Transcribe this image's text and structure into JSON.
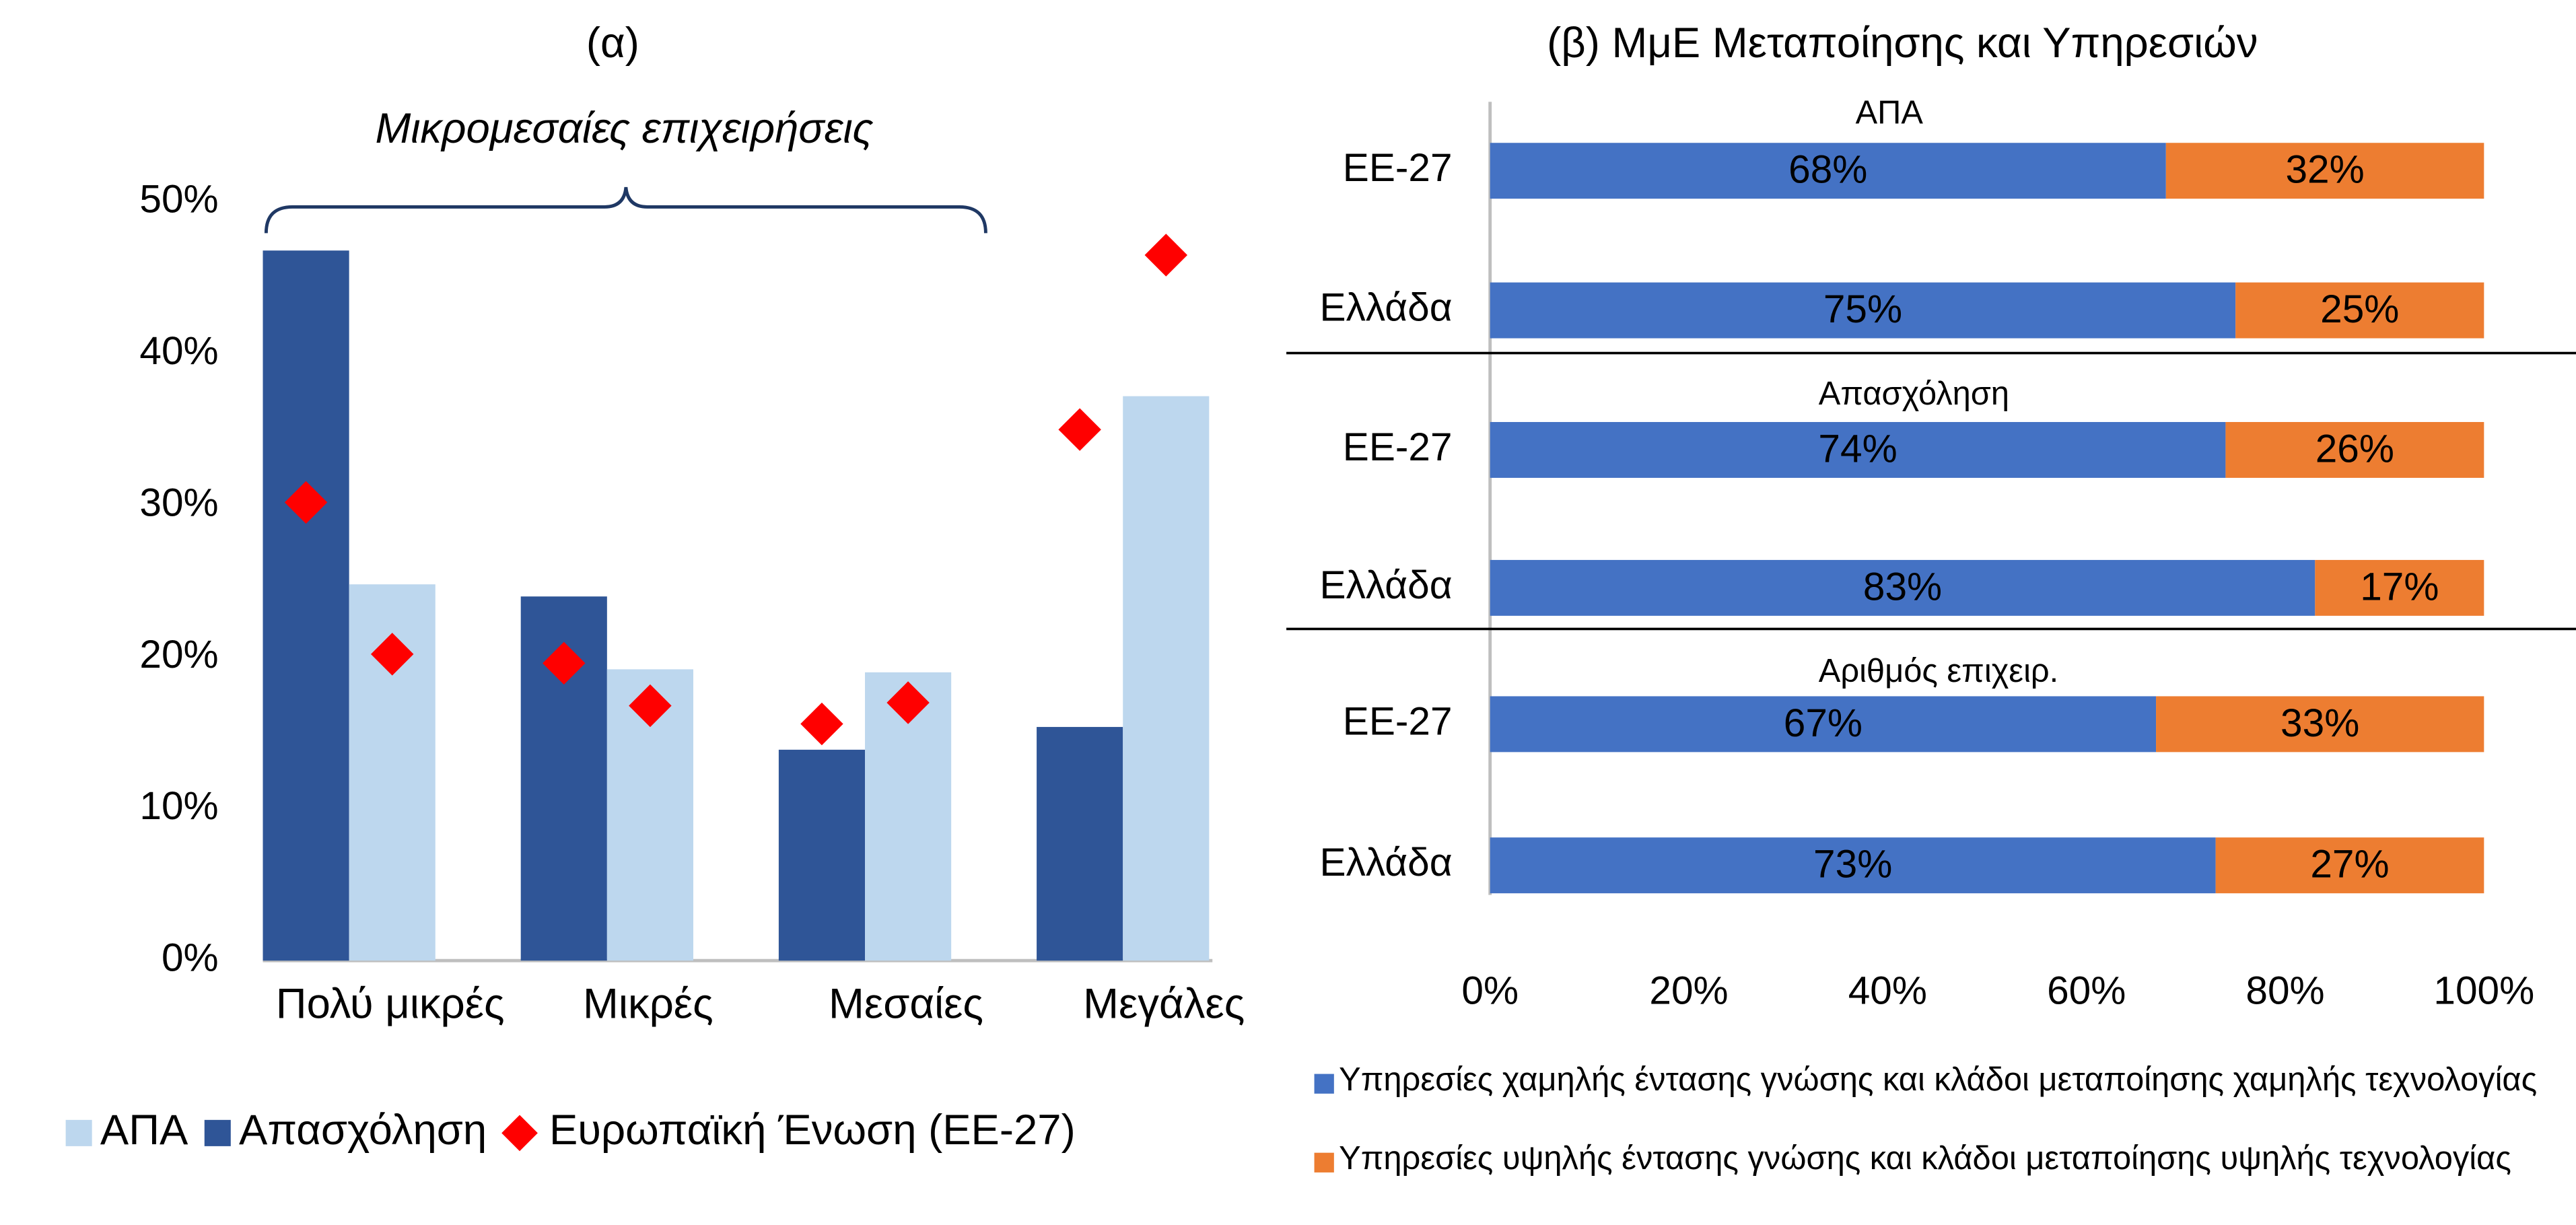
{
  "chart_data": [
    {
      "type": "bar",
      "title": "(α)",
      "annotation": "Μικρομεσαίες επιχειρήσεις",
      "categories": [
        "Πολύ μικρές",
        "Μικρές",
        "Μεσαίες",
        "Μεγάλες"
      ],
      "series": [
        {
          "name": "Απασχόληση",
          "color": "#2f5597",
          "values": [
            46.8,
            24,
            13.9,
            15.4
          ],
          "eu_values": [
            30.2,
            19.6,
            15.6,
            35
          ]
        },
        {
          "name": "ΑΠΑ",
          "color": "#bdd7ee",
          "values": [
            24.8,
            19.2,
            19,
            37.2
          ],
          "eu_values": [
            20.2,
            16.8,
            17,
            46.5
          ]
        }
      ],
      "eu_marker": {
        "name": "Ευρωπαϊκή Ένωση (ΕΕ-27)",
        "color": "#ff0000"
      },
      "ylim": [
        0,
        50
      ],
      "yticks": [
        {
          "value": 0,
          "label": "0%"
        },
        {
          "value": 10,
          "label": "10%"
        },
        {
          "value": 20,
          "label": "20%"
        },
        {
          "value": 30,
          "label": "30%"
        },
        {
          "value": 40,
          "label": "40%"
        },
        {
          "value": 50,
          "label": "50%"
        }
      ],
      "grid": false
    },
    {
      "type": "stacked-hbar",
      "title": "(β) ΜμΕ Μεταποίησης και Υπηρεσιών",
      "groups": [
        "ΑΠΑ",
        "Απασχόληση",
        "Αριθμός επιχειρ."
      ],
      "categories": [
        "ΕΕ-27",
        "Ελλάδα",
        "ΕΕ-27",
        "Ελλάδα",
        "ΕΕ-27",
        "Ελλάδα"
      ],
      "series": [
        {
          "name": "Υπηρεσίες χαμηλής έντασης γνώσης και κλάδοι μεταποίησης χαμηλής τεχνολογίας",
          "color": "#4472c4",
          "values": [
            68,
            75,
            74,
            83,
            67,
            73
          ],
          "value_labels": [
            "68%",
            "75%",
            "74%",
            "83%",
            "67%",
            "73%"
          ]
        },
        {
          "name": "Υπηρεσίες υψηλής έντασης γνώσης και κλάδοι μεταποίησης υψηλής τεχνολογίας",
          "color": "#ed7d31",
          "values": [
            32,
            25,
            26,
            17,
            33,
            27
          ],
          "value_labels": [
            "32%",
            "25%",
            "26%",
            "17%",
            "33%",
            "27%"
          ]
        }
      ],
      "xlim": [
        0,
        100
      ],
      "xticks": [
        {
          "value": 0,
          "label": "0%"
        },
        {
          "value": 20,
          "label": "20%"
        },
        {
          "value": 40,
          "label": "40%"
        },
        {
          "value": 60,
          "label": "60%"
        },
        {
          "value": 80,
          "label": "80%"
        },
        {
          "value": 100,
          "label": "100%"
        }
      ],
      "grid": false
    }
  ]
}
